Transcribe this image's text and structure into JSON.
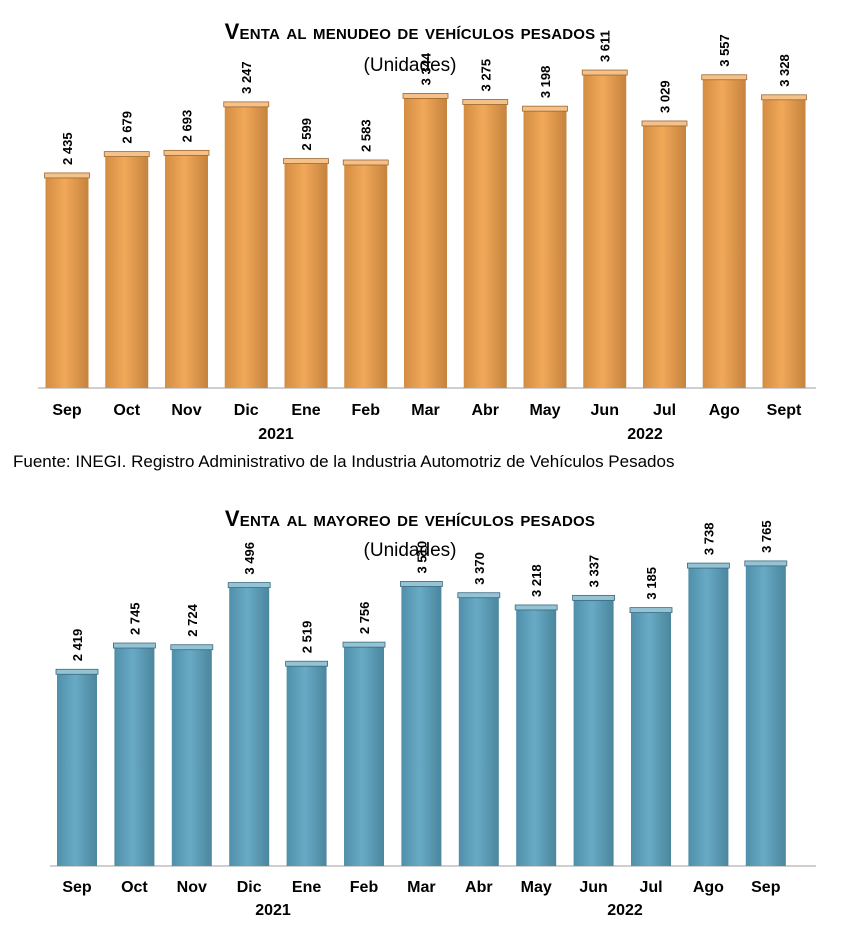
{
  "chart_data": [
    {
      "type": "bar",
      "title": "Venta al menudeo de vehículos pesados",
      "subtitle": "(Unidades)",
      "categories": [
        "Sep",
        "Oct",
        "Nov",
        "Dic",
        "Ene",
        "Feb",
        "Mar",
        "Abr",
        "May",
        "Jun",
        "Jul",
        "Ago",
        "Sept"
      ],
      "values": [
        2435,
        2679,
        2693,
        3247,
        2599,
        2583,
        3344,
        3275,
        3198,
        3611,
        3029,
        3557,
        3328
      ],
      "value_labels": [
        "2 435",
        "2 679",
        "2 693",
        "3 247",
        "2 599",
        "2 583",
        "3 344",
        "3 275",
        "3 198",
        "3 611",
        "3 029",
        "3 557",
        "3 328"
      ],
      "year_labels": [
        "2021",
        "2022"
      ],
      "bar_color": "#f0a04b",
      "ylim": [
        0,
        4000
      ],
      "grid": false,
      "source": "Fuente: INEGI. Registro Administrativo de la Industria Automotriz de Vehículos Pesados"
    },
    {
      "type": "bar",
      "title": "Venta al mayoreo de vehículos pesados",
      "subtitle": "(Unidades)",
      "categories": [
        "Sep",
        "Oct",
        "Nov",
        "Dic",
        "Ene",
        "Feb",
        "Mar",
        "Abr",
        "May",
        "Jun",
        "Jul",
        "Ago",
        "Sep"
      ],
      "values": [
        2419,
        2745,
        2724,
        3496,
        2519,
        2756,
        3510,
        3370,
        3218,
        3337,
        3185,
        3738,
        3765
      ],
      "value_labels": [
        "2 419",
        "2 745",
        "2 724",
        "3 496",
        "2 519",
        "2 756",
        "3 510",
        "3 370",
        "3 218",
        "3 337",
        "3 185",
        "3 738",
        "3 765"
      ],
      "year_labels": [
        "2021",
        "2022"
      ],
      "bar_color": "#5ba3c0",
      "ylim": [
        0,
        4000
      ],
      "grid": false
    }
  ]
}
